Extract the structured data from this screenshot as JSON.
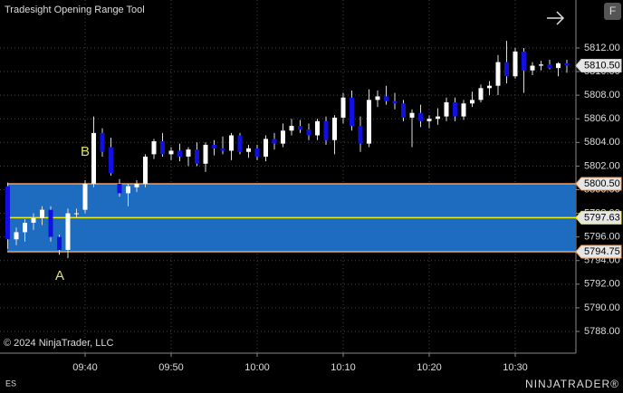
{
  "chart_data": {
    "type": "candlestick",
    "title": "Tradesight Opening Range Tool",
    "copyright": "© 2024 NinjaTrader, LLC",
    "instrument": "ES",
    "logo": "NINJATRADER®",
    "button": "F",
    "up_color": "#ffffff",
    "down_color": "#1010e0",
    "grid": true,
    "categories": [
      null,
      null,
      null,
      null,
      null,
      null,
      null,
      null,
      null,
      "09:40",
      null,
      null,
      null,
      null,
      null,
      null,
      null,
      null,
      null,
      "09:50",
      null,
      null,
      null,
      null,
      null,
      null,
      null,
      null,
      null,
      "10:00",
      null,
      null,
      null,
      null,
      null,
      null,
      null,
      null,
      null,
      "10:10",
      null,
      null,
      null,
      null,
      null,
      null,
      null,
      null,
      null,
      "10:20",
      null,
      null,
      null,
      null,
      null,
      null,
      null,
      null,
      null,
      "10:30",
      null,
      null,
      null,
      null,
      null,
      null
    ],
    "open": [
      5800.3,
      5795.8,
      5796.4,
      5797.2,
      5797.6,
      5798.3,
      5796.0,
      5794.9,
      5798.0,
      5798.3,
      5800.5,
      5804.8,
      5803.6,
      5800.5,
      5799.7,
      5800.2,
      5800.5,
      5803.0,
      5804.1,
      5803.0,
      5803.3,
      5802.8,
      5803.4,
      5802.2,
      5803.8,
      5803.5,
      5803.3,
      5804.6,
      5803.2,
      5803.5,
      5802.8,
      5804.3,
      5803.9,
      5805.0,
      5805.4,
      5805.1,
      5804.6,
      5805.8,
      5804.2,
      5806.1,
      5807.8,
      5805.4,
      5803.9,
      5807.6,
      5807.9,
      5807.5,
      5807.3,
      5806.1,
      5806.5,
      5805.8,
      5806.0,
      5806.2,
      5807.4,
      5806.2,
      5807.3,
      5807.6,
      5808.6,
      5808.8,
      5810.8,
      5809.6,
      5811.7,
      5810.1,
      5810.5,
      5810.6,
      5810.3,
      5810.7
    ],
    "high": [
      5800.6,
      5796.8,
      5797.5,
      5798.0,
      5798.6,
      5798.6,
      5796.2,
      5798.4,
      5798.4,
      5800.8,
      5806.2,
      5805.2,
      5804.4,
      5800.9,
      5800.5,
      5800.8,
      5803.0,
      5804.3,
      5804.8,
      5803.6,
      5803.9,
      5803.6,
      5804.0,
      5804.0,
      5804.2,
      5804.5,
      5804.8,
      5804.8,
      5803.8,
      5803.8,
      5804.6,
      5804.8,
      5805.6,
      5806.0,
      5805.9,
      5805.6,
      5806.0,
      5806.2,
      5806.3,
      5808.2,
      5808.4,
      5806.2,
      5808.5,
      5808.4,
      5808.8,
      5808.2,
      5807.6,
      5806.8,
      5807.2,
      5806.3,
      5806.9,
      5807.8,
      5807.8,
      5807.6,
      5808.3,
      5808.9,
      5809.2,
      5811.4,
      5812.6,
      5812.0,
      5812.0,
      5810.8,
      5810.9,
      5811.0,
      5810.8,
      5811.0
    ],
    "low": [
      5795.0,
      5795.3,
      5795.6,
      5796.6,
      5797.0,
      5795.6,
      5794.5,
      5794.2,
      5797.6,
      5798.0,
      5800.2,
      5802.8,
      5801.2,
      5799.4,
      5798.6,
      5799.8,
      5800.2,
      5802.6,
      5802.8,
      5802.5,
      5802.4,
      5802.0,
      5802.0,
      5801.5,
      5802.9,
      5803.0,
      5802.5,
      5803.0,
      5802.7,
      5802.5,
      5802.4,
      5803.4,
      5803.6,
      5804.6,
      5804.8,
      5804.2,
      5804.2,
      5803.8,
      5803.0,
      5805.6,
      5805.0,
      5803.2,
      5803.6,
      5807.0,
      5807.2,
      5806.8,
      5805.8,
      5803.6,
      5805.3,
      5805.2,
      5805.5,
      5805.8,
      5805.8,
      5805.9,
      5807.0,
      5807.4,
      5808.0,
      5808.0,
      5809.0,
      5809.4,
      5808.2,
      5809.7,
      5810.1,
      5810.2,
      5809.6,
      5809.9
    ],
    "close": [
      5795.8,
      5796.4,
      5797.2,
      5797.6,
      5798.3,
      5796.0,
      5794.9,
      5798.0,
      5798.0,
      5800.5,
      5804.8,
      5803.2,
      5801.4,
      5799.7,
      5800.3,
      5800.5,
      5802.8,
      5804.1,
      5803.0,
      5803.3,
      5802.8,
      5803.4,
      5802.2,
      5803.8,
      5803.5,
      5803.3,
      5804.6,
      5803.2,
      5803.5,
      5802.8,
      5804.3,
      5803.9,
      5805.0,
      5805.4,
      5805.1,
      5804.6,
      5805.8,
      5804.2,
      5806.1,
      5807.8,
      5805.4,
      5803.9,
      5807.6,
      5807.9,
      5807.5,
      5807.3,
      5806.1,
      5806.5,
      5805.8,
      5806.0,
      5806.2,
      5807.4,
      5806.2,
      5807.3,
      5807.6,
      5808.6,
      5808.8,
      5810.8,
      5809.6,
      5811.7,
      5810.1,
      5810.5,
      5810.6,
      5810.3,
      5810.7,
      5810.5
    ],
    "ylim": [
      5786.16,
      5816.06
    ],
    "yticks": [
      {
        "value": 5788,
        "label": "5788.00"
      },
      {
        "value": 5790,
        "label": "5790.00"
      },
      {
        "value": 5792,
        "label": "5792.00"
      },
      {
        "value": 5794,
        "label": "5794.00"
      },
      {
        "value": 5796,
        "label": "5796.00"
      },
      {
        "value": 5798,
        "label": "5798.00"
      },
      {
        "value": 5800,
        "label": "5800.00"
      },
      {
        "value": 5802,
        "label": "5802.00"
      },
      {
        "value": 5804,
        "label": "5804.00"
      },
      {
        "value": 5806,
        "label": "5806.00"
      },
      {
        "value": 5808,
        "label": "5808.00"
      },
      {
        "value": 5810,
        "label": "5810.00"
      },
      {
        "value": 5812,
        "label": "5812.00"
      }
    ],
    "opening_range": {
      "values": [
        5800.5,
        5797.63,
        5794.75
      ],
      "value_labels": [
        "5800.50",
        "5797.63",
        "5794.75"
      ],
      "color": "#1e6cc0",
      "edge_color": "#f0a060",
      "mid_color": "#f0f000"
    },
    "last_price": {
      "values": [
        5810.5
      ],
      "value_labels": [
        "5810.50"
      ]
    },
    "annotations": [
      "A",
      "B"
    ]
  }
}
